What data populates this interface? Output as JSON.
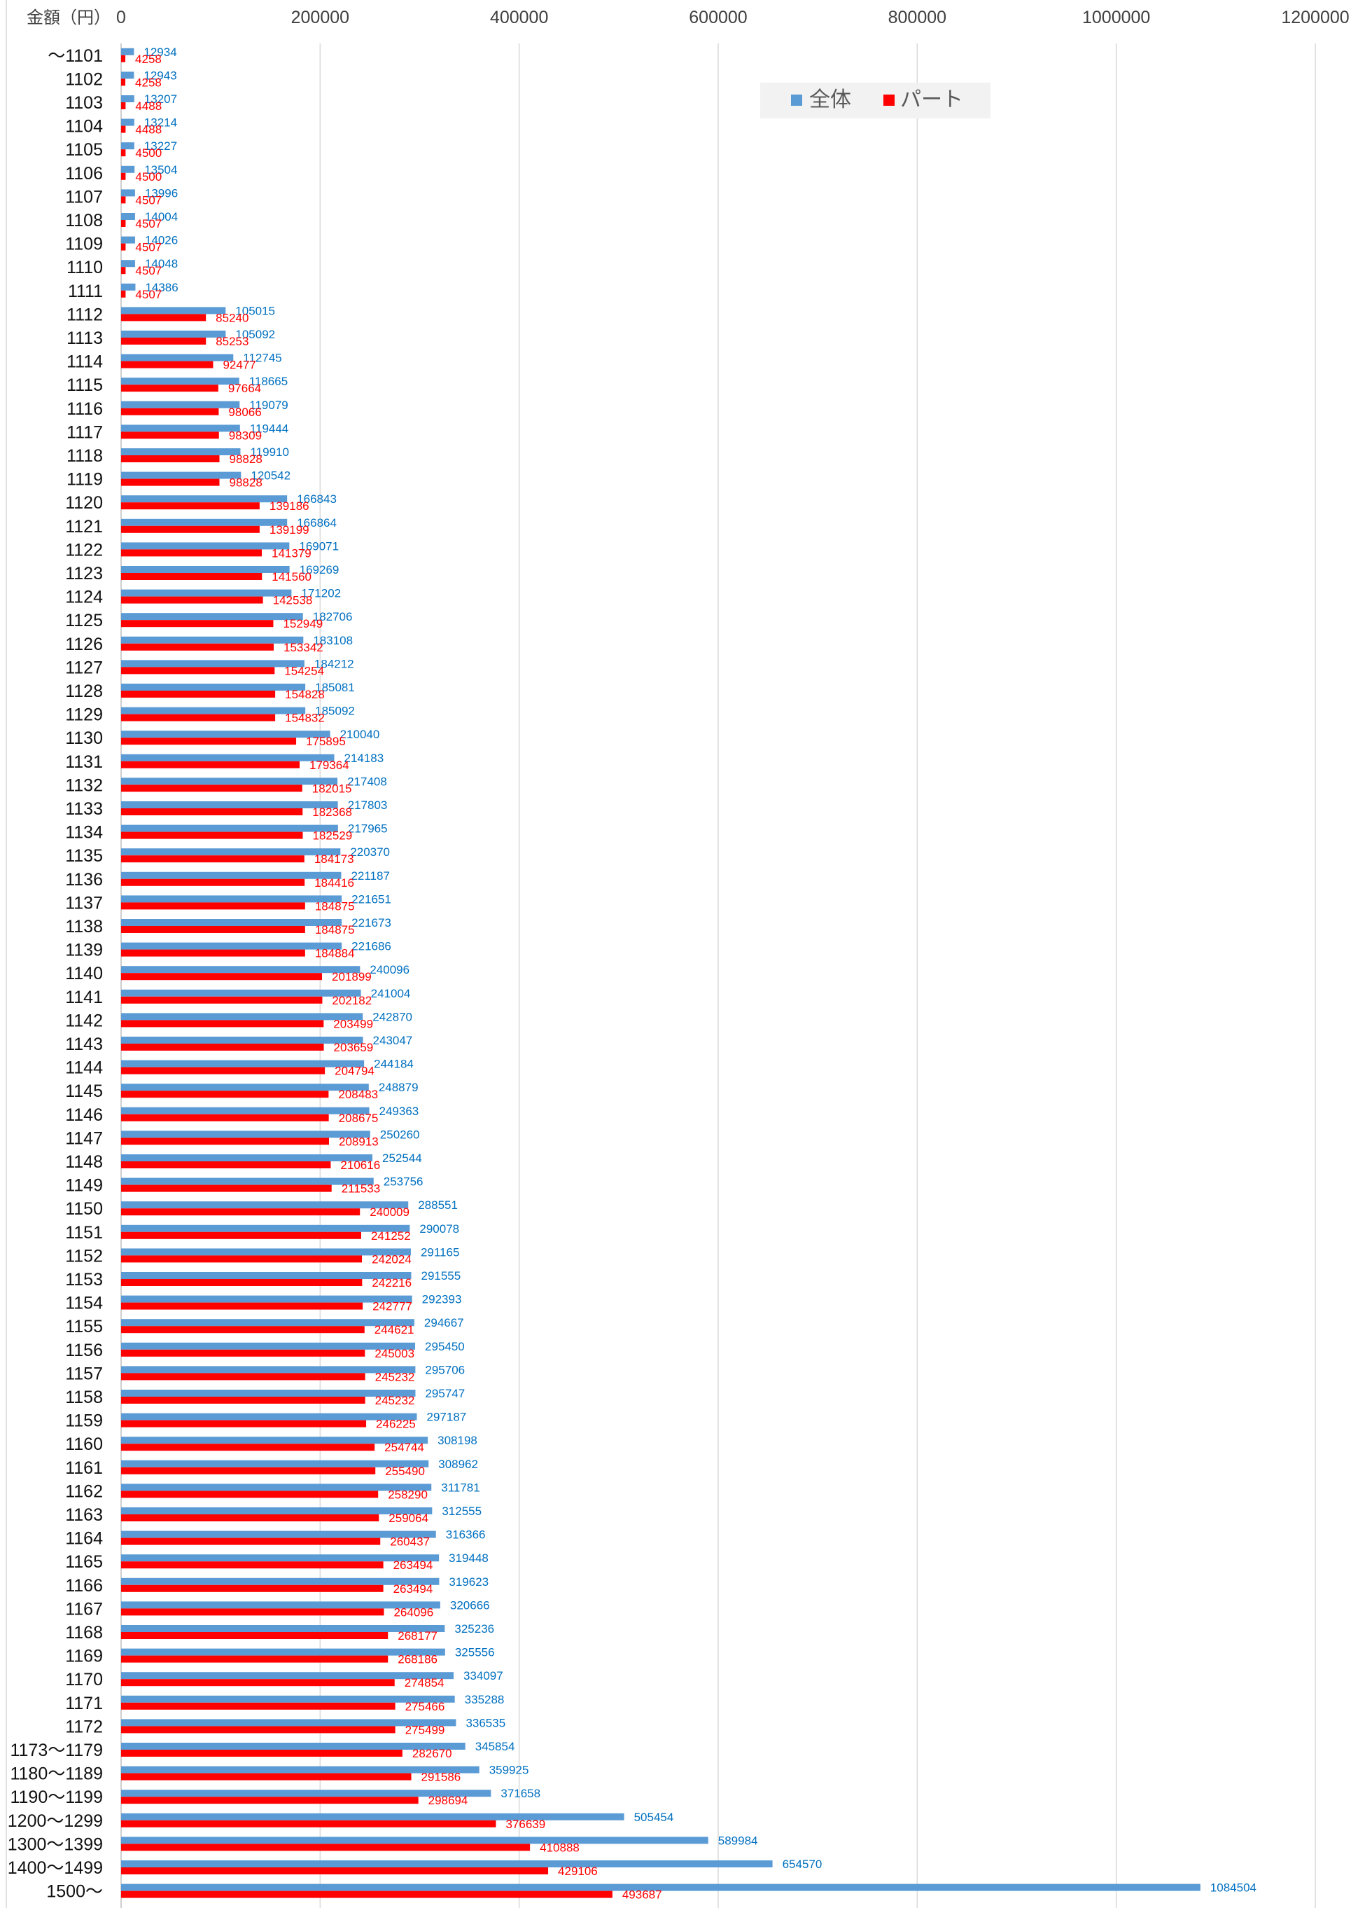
{
  "chart_data": {
    "type": "bar",
    "orientation": "horizontal",
    "xlabel": "金額（円）",
    "xlim": [
      0,
      1200000
    ],
    "xticks": [
      0,
      200000,
      400000,
      600000,
      800000,
      1000000,
      1200000
    ],
    "grid": true,
    "legend_position": "top",
    "categories": [
      "～1101",
      "1102",
      "1103",
      "1104",
      "1105",
      "1106",
      "1107",
      "1108",
      "1109",
      "1110",
      "1111",
      "1112",
      "1113",
      "1114",
      "1115",
      "1116",
      "1117",
      "1118",
      "1119",
      "1120",
      "1121",
      "1122",
      "1123",
      "1124",
      "1125",
      "1126",
      "1127",
      "1128",
      "1129",
      "1130",
      "1131",
      "1132",
      "1133",
      "1134",
      "1135",
      "1136",
      "1137",
      "1138",
      "1139",
      "1140",
      "1141",
      "1142",
      "1143",
      "1144",
      "1145",
      "1146",
      "1147",
      "1148",
      "1149",
      "1150",
      "1151",
      "1152",
      "1153",
      "1154",
      "1155",
      "1156",
      "1157",
      "1158",
      "1159",
      "1160",
      "1161",
      "1162",
      "1163",
      "1164",
      "1165",
      "1166",
      "1167",
      "1168",
      "1169",
      "1170",
      "1171",
      "1172",
      "1173～1179",
      "1180～1189",
      "1190～1199",
      "1200～1299",
      "1300～1399",
      "1400～1499",
      "1500～"
    ],
    "series": [
      {
        "name": "全体",
        "color": "#5B9BD5",
        "label_color": "#0070C0",
        "values": [
          12934,
          12943,
          13207,
          13214,
          13227,
          13504,
          13996,
          14004,
          14026,
          14048,
          14386,
          105015,
          105092,
          112745,
          118665,
          119079,
          119444,
          119910,
          120542,
          166843,
          166864,
          169071,
          169269,
          171202,
          182706,
          183108,
          184212,
          185081,
          185092,
          210040,
          214183,
          217408,
          217803,
          217965,
          220370,
          221187,
          221651,
          221673,
          221686,
          240096,
          241004,
          242870,
          243047,
          244184,
          248879,
          249363,
          250260,
          252544,
          253756,
          288551,
          290078,
          291165,
          291555,
          292393,
          294667,
          295450,
          295706,
          295747,
          297187,
          308198,
          308962,
          311781,
          312555,
          316366,
          319448,
          319623,
          320666,
          325236,
          325556,
          334097,
          335288,
          336535,
          345854,
          359925,
          371658,
          505454,
          589984,
          654570,
          1084504
        ]
      },
      {
        "name": "パート",
        "color": "#FF0000",
        "label_color": "#FF0000",
        "values": [
          4258,
          4258,
          4488,
          4488,
          4500,
          4500,
          4507,
          4507,
          4507,
          4507,
          4507,
          85240,
          85253,
          92477,
          97664,
          98066,
          98309,
          98828,
          98828,
          139186,
          139199,
          141379,
          141560,
          142538,
          152949,
          153342,
          154254,
          154828,
          154832,
          175895,
          179364,
          182015,
          182368,
          182529,
          184173,
          184416,
          184875,
          184875,
          184884,
          201899,
          202182,
          203499,
          203659,
          204794,
          208483,
          208675,
          208913,
          210616,
          211533,
          240009,
          241252,
          242024,
          242216,
          242777,
          244621,
          245003,
          245232,
          245232,
          246225,
          254744,
          255490,
          258290,
          259064,
          260437,
          263494,
          263494,
          264096,
          268177,
          268186,
          274854,
          275466,
          275499,
          282670,
          291586,
          298694,
          376639,
          410888,
          429106,
          493687
        ]
      }
    ]
  }
}
